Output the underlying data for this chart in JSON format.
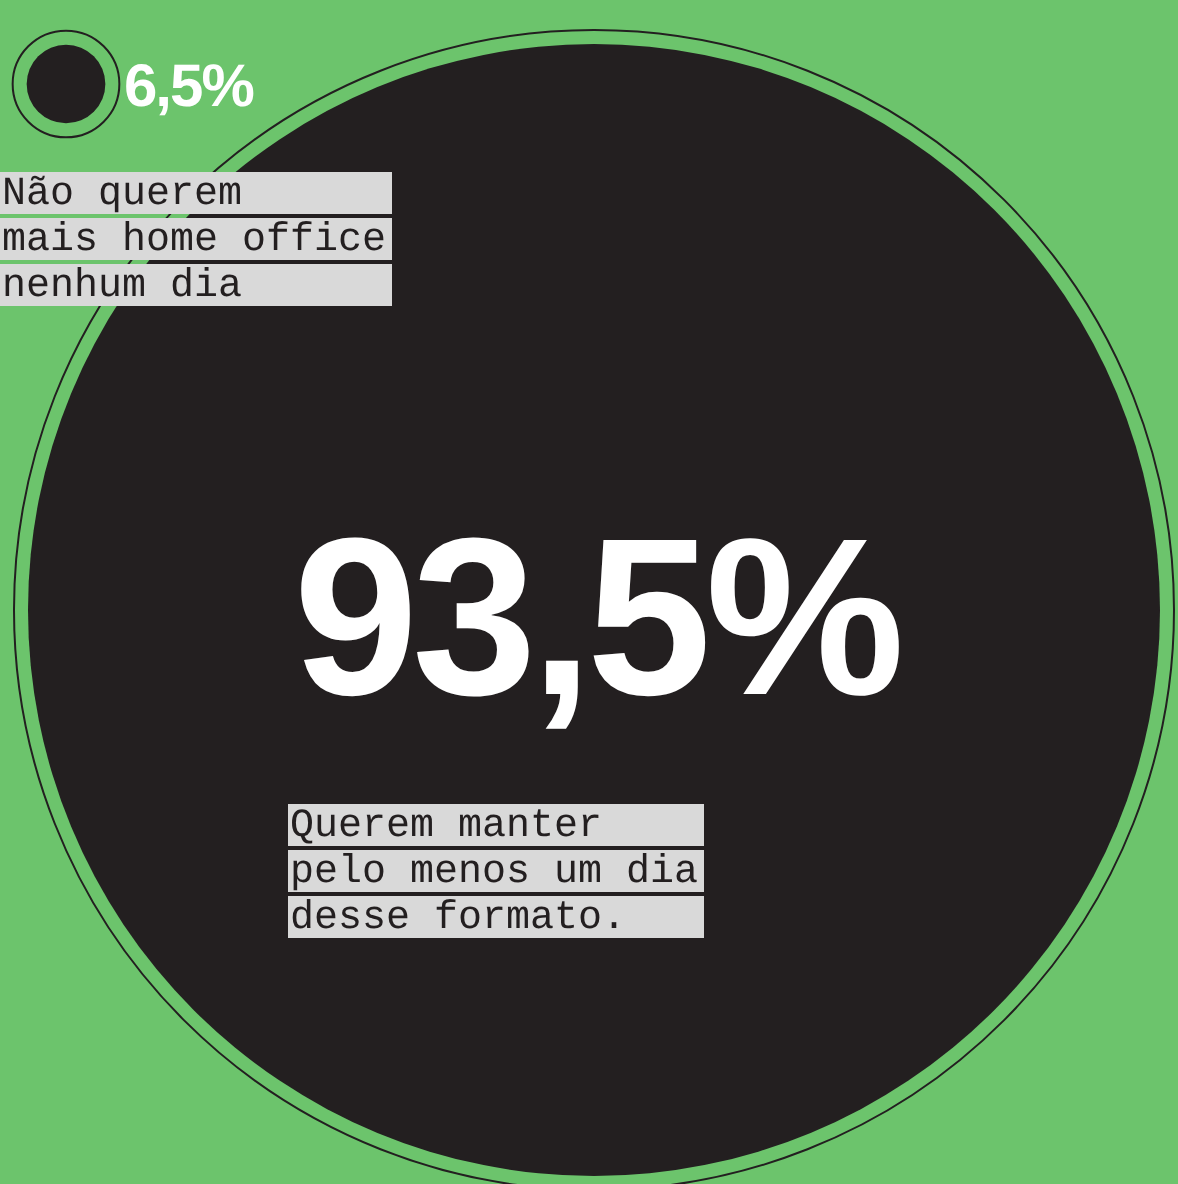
{
  "chart_data": {
    "type": "other",
    "categories": [
      "Não querem\nmais home office\nnenhum dia",
      "Querem manter\npelo menos um dia\ndesse formato."
    ],
    "values": [
      6.5,
      93.5
    ],
    "value_labels": [
      "6,5%",
      "93,5%"
    ],
    "colors": [
      "#231f20",
      "#231f20"
    ]
  }
}
